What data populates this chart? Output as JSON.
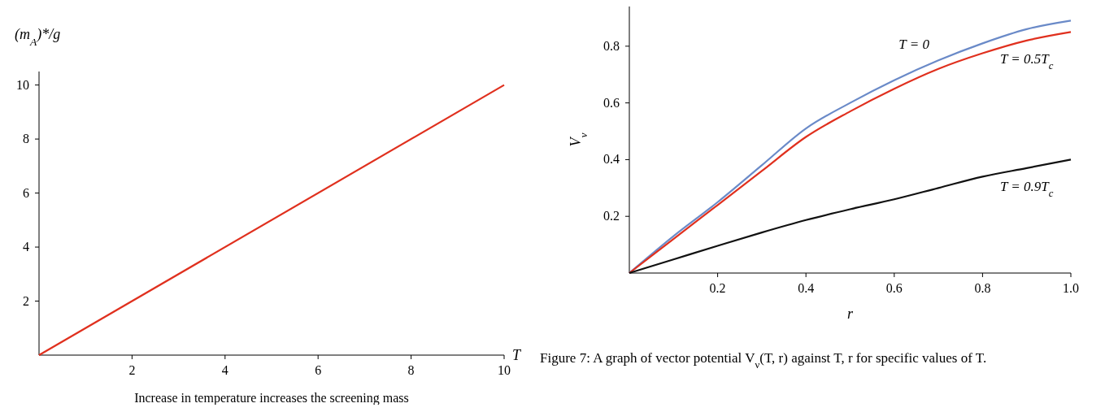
{
  "chart_data": [
    {
      "type": "line",
      "xlabel": "T",
      "ylabel": "(m$_{A}$)*/g",
      "xlim": [
        0,
        10
      ],
      "ylim": [
        0,
        10.5
      ],
      "xticks": [
        2,
        4,
        6,
        8,
        10
      ],
      "yticks": [
        2,
        4,
        6,
        8,
        10
      ],
      "grid": false,
      "annotations": [
        "Increase in temperature increases the screening mass"
      ],
      "x": [
        0,
        10
      ],
      "series": [
        {
          "color": "#e0301e",
          "values": [
            0,
            10
          ]
        }
      ]
    },
    {
      "type": "line",
      "xlabel": "r",
      "ylabel": "V$_{ν}$",
      "xlim": [
        0,
        1
      ],
      "ylim": [
        0,
        0.94
      ],
      "xticks": [
        0.2,
        0.4,
        0.6,
        0.8,
        {
          "value": 1,
          "label": "1.0"
        }
      ],
      "yticks": [
        0.2,
        0.4,
        0.6,
        0.8
      ],
      "grid": false,
      "annotations": [
        "Figure 7: A graph of vector potential V$_{ν}$(T, r) against T, r for specific values of T."
      ],
      "x": [
        0,
        0.1,
        0.2,
        0.3,
        0.4,
        0.5,
        0.6,
        0.7,
        0.8,
        0.9,
        1.0
      ],
      "series": [
        {
          "name": "T = 0",
          "color": "#6a8ac8",
          "values": [
            0,
            0.13,
            0.25,
            0.38,
            0.51,
            0.6,
            0.68,
            0.75,
            0.81,
            0.86,
            0.89
          ]
        },
        {
          "name": "T = 0.5T$_{c}$",
          "color": "#e0301e",
          "values": [
            0,
            0.12,
            0.24,
            0.36,
            0.48,
            0.57,
            0.65,
            0.72,
            0.775,
            0.82,
            0.85
          ]
        },
        {
          "name": "T = 0.9T$_{c}$",
          "color": "#111111",
          "values": [
            0,
            0.048,
            0.096,
            0.143,
            0.187,
            0.225,
            0.26,
            0.3,
            0.34,
            0.37,
            0.4
          ]
        }
      ]
    }
  ]
}
